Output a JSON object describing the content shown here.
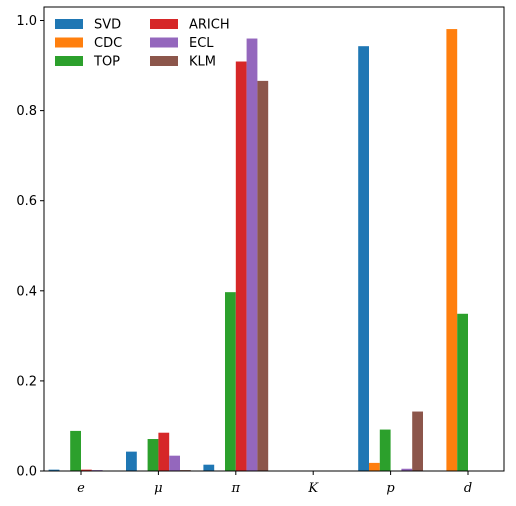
{
  "chart_data": {
    "type": "bar",
    "categories": [
      "e",
      "μ",
      "π",
      "K",
      "p",
      "d"
    ],
    "series": [
      {
        "name": "SVD",
        "color": "#1f77b4",
        "values": [
          0.003,
          0.043,
          0.014,
          0.0,
          0.943,
          0.0
        ]
      },
      {
        "name": "CDC",
        "color": "#ff7f0e",
        "values": [
          0.0,
          0.0,
          0.0,
          0.0,
          0.018,
          0.981
        ]
      },
      {
        "name": "TOP",
        "color": "#2ca02c",
        "values": [
          0.089,
          0.071,
          0.397,
          0.0,
          0.092,
          0.349
        ]
      },
      {
        "name": "ARICH",
        "color": "#d62728",
        "values": [
          0.003,
          0.085,
          0.909,
          0.0,
          0.0,
          0.0
        ]
      },
      {
        "name": "ECL",
        "color": "#9467bd",
        "values": [
          0.002,
          0.034,
          0.96,
          0.0,
          0.005,
          0.0
        ]
      },
      {
        "name": "KLM",
        "color": "#8c564b",
        "values": [
          0.001,
          0.002,
          0.866,
          0.0,
          0.132,
          0.0
        ]
      }
    ],
    "yticks": [
      "0.0",
      "0.2",
      "0.4",
      "0.6",
      "0.8",
      "1.0"
    ],
    "ylim": [
      0,
      1.03
    ],
    "legend": {
      "position": "top-left",
      "columns": 2
    },
    "grid": false,
    "title": "",
    "xlabel": "",
    "ylabel": ""
  }
}
